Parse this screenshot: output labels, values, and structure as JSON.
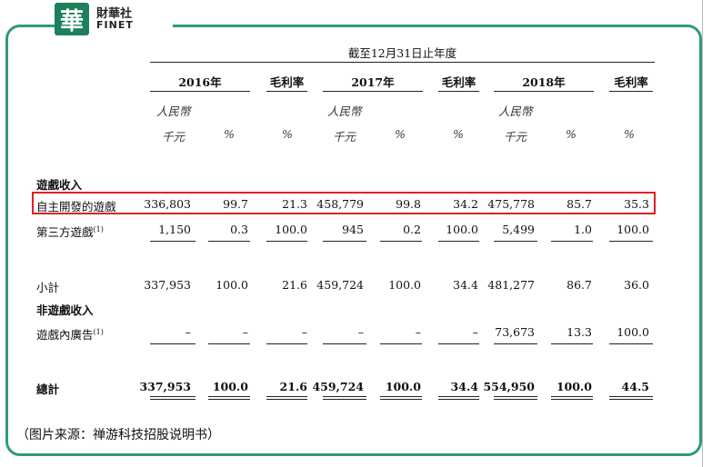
{
  "logo": {
    "mark": "華",
    "cn": "財華社",
    "en": "FINET"
  },
  "table": {
    "period_header": "截至12月31日止年度",
    "years": [
      "2016年",
      "2017年",
      "2018年"
    ],
    "gross_margin": "毛利率",
    "unit_currency": "人民幣",
    "unit_thousand": "千元",
    "unit_pct": "%",
    "section_game": "遊戲收入",
    "section_nongame": "非遊戲收入",
    "rows": {
      "self_developed": {
        "label": "自主開發的遊戲",
        "values": [
          "336,803",
          "99.7",
          "21.3",
          "458,779",
          "99.8",
          "34.2",
          "475,778",
          "85.7",
          "35.3"
        ]
      },
      "third_party": {
        "label": "第三方遊戲",
        "note": "(1)",
        "values": [
          "1,150",
          "0.3",
          "100.0",
          "945",
          "0.2",
          "100.0",
          "5,499",
          "1.0",
          "100.0"
        ]
      },
      "subtotal": {
        "label": "小計",
        "values": [
          "337,953",
          "100.0",
          "21.6",
          "459,724",
          "100.0",
          "34.4",
          "481,277",
          "86.7",
          "36.0"
        ]
      },
      "ads": {
        "label": "遊戲內廣告",
        "note": "(1)",
        "values": [
          "–",
          "–",
          "–",
          "–",
          "–",
          "–",
          "73,673",
          "13.3",
          "100.0"
        ]
      },
      "total": {
        "label": "總計",
        "values": [
          "337,953",
          "100.0",
          "21.6",
          "459,724",
          "100.0",
          "34.4",
          "554,950",
          "100.0",
          "44.5"
        ]
      }
    }
  },
  "caption": "（图片来源：禅游科技招股说明书）"
}
